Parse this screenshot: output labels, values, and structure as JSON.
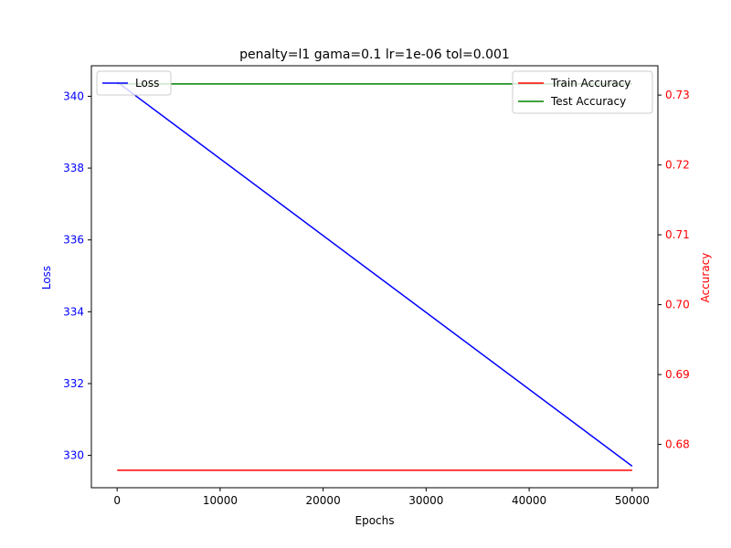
{
  "chart_data": {
    "type": "line",
    "title": "penalty=l1 gama=0.1 lr=1e-06 tol=0.001",
    "xlabel": "Epochs",
    "ylabel_left": "Loss",
    "ylabel_right": "Accuracy",
    "xlim": [
      -2500,
      52500
    ],
    "ylim_left": [
      329.1,
      340.85
    ],
    "ylim_right": [
      0.6738,
      0.7342
    ],
    "x_ticks": [
      0,
      10000,
      20000,
      30000,
      40000,
      50000
    ],
    "y_ticks_left": [
      330,
      332,
      334,
      336,
      338,
      340
    ],
    "y_ticks_right": [
      0.68,
      0.69,
      0.7,
      0.71,
      0.72,
      0.73
    ],
    "colors": {
      "loss": "#0000ff",
      "train": "#ff0000",
      "test": "#008000",
      "left_axis_text": "#0000ff",
      "right_axis_text": "#ff0000"
    },
    "series": [
      {
        "name": "Loss",
        "axis": "left",
        "color": "#0000ff",
        "x": [
          0,
          50000
        ],
        "y": [
          340.4,
          329.7
        ]
      },
      {
        "name": "Train Accuracy",
        "axis": "right",
        "color": "#ff0000",
        "x": [
          0,
          50000
        ],
        "y": [
          0.6763,
          0.6763
        ]
      },
      {
        "name": "Test Accuracy",
        "axis": "right",
        "color": "#008000",
        "x": [
          0,
          50000
        ],
        "y": [
          0.7316,
          0.7316
        ]
      }
    ],
    "legend_left": {
      "placement": "upper-left",
      "entries": [
        "Loss"
      ]
    },
    "legend_right": {
      "placement": "upper-right",
      "entries": [
        "Train Accuracy",
        "Test Accuracy"
      ]
    },
    "grid": false
  }
}
